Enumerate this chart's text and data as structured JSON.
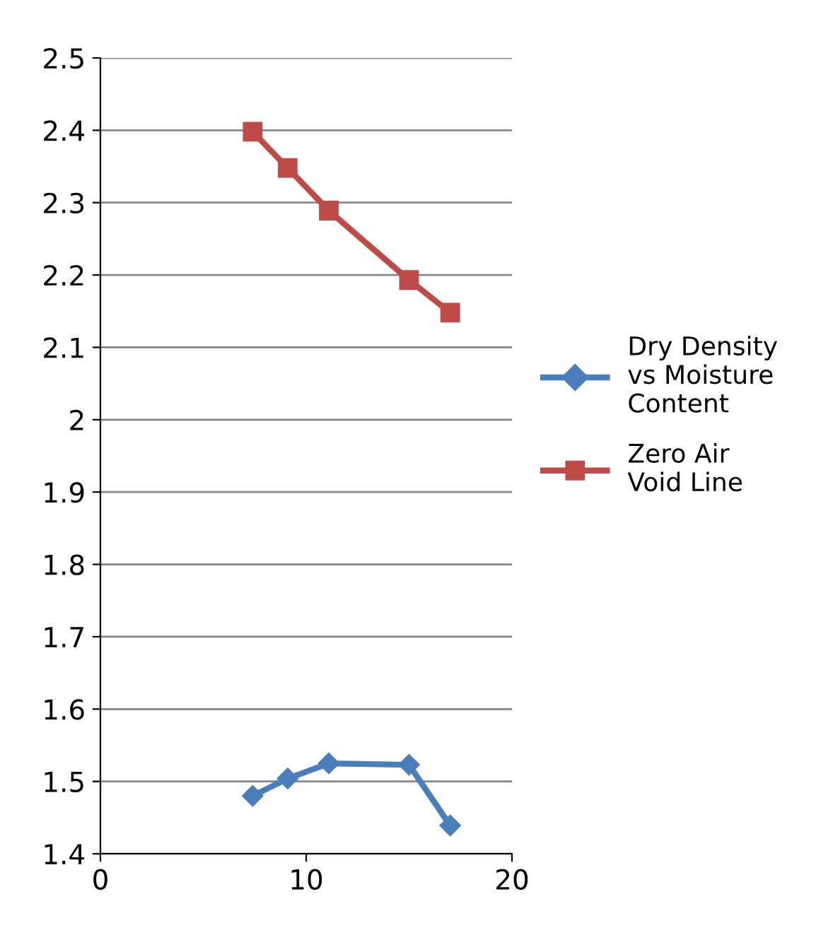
{
  "chart_data": {
    "type": "line",
    "xlim": [
      0,
      20
    ],
    "xticks": [
      0,
      10,
      20
    ],
    "ylim": [
      1.4,
      2.5
    ],
    "yticks": [
      1.4,
      1.5,
      1.6,
      1.7,
      1.8,
      1.9,
      2,
      2.1,
      2.2,
      2.3,
      2.4,
      2.5
    ],
    "grid": "y",
    "legend": "right",
    "series": [
      {
        "name": "Dry Density vs Moisture Content",
        "color": "#4a7ebb",
        "marker": "diamond",
        "x": [
          7.4,
          9.1,
          11.1,
          15.0,
          17.0
        ],
        "values": [
          1.48,
          1.504,
          1.525,
          1.523,
          1.439
        ]
      },
      {
        "name": "Zero Air Void Line",
        "color": "#be4b48",
        "marker": "square",
        "x": [
          7.4,
          9.1,
          11.1,
          15.0,
          17.0
        ],
        "values": [
          2.398,
          2.348,
          2.289,
          2.193,
          2.148
        ]
      }
    ]
  }
}
